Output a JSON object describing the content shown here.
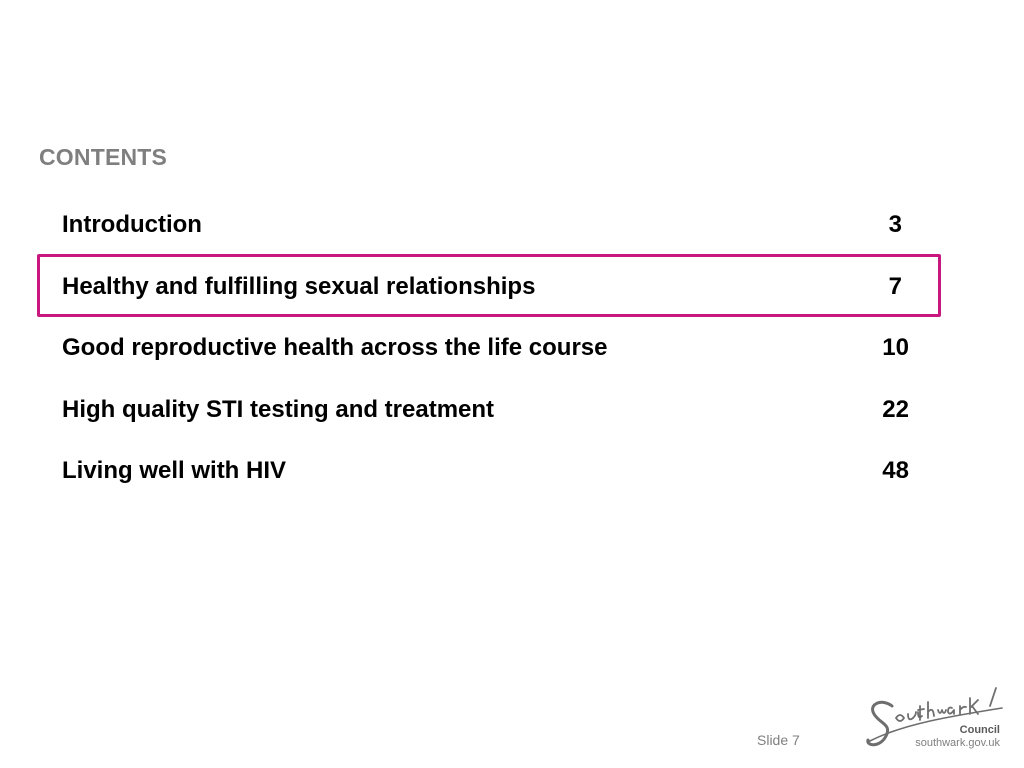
{
  "heading": "CONTENTS",
  "toc": [
    {
      "title": "Introduction",
      "page": "3"
    },
    {
      "title": "Healthy and fulfilling sexual relationships",
      "page": "7"
    },
    {
      "title": "Good reproductive health across the life course",
      "page": "10"
    },
    {
      "title": "High quality STI testing and treatment",
      "page": "22"
    },
    {
      "title": "Living well with HIV",
      "page": "48"
    }
  ],
  "highlighted_index": 1,
  "footer": {
    "slide_label": "Slide 7"
  },
  "logo": {
    "wordmark": "Southwark",
    "council": "Council",
    "url": "southwark.gov.uk"
  },
  "colors": {
    "highlight": "#c8177e",
    "heading": "#7f7f7f",
    "text": "#000000"
  }
}
